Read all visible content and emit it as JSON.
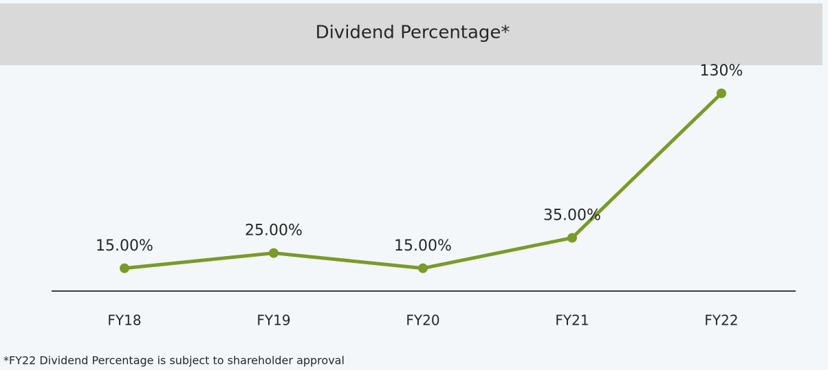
{
  "chart_data": {
    "type": "line",
    "title": "Dividend Percentage*",
    "categories": [
      "FY18",
      "FY19",
      "FY20",
      "FY21",
      "FY22"
    ],
    "series": [
      {
        "color": "#7b9a2a",
        "values": [
          15,
          25,
          15,
          35,
          130
        ],
        "value_labels": [
          "15.00%",
          "25.00%",
          "15.00%",
          "35.00%",
          "130%"
        ]
      }
    ],
    "annotation": "*FY22 Dividend Percentage is subject to shareholder approval"
  }
}
